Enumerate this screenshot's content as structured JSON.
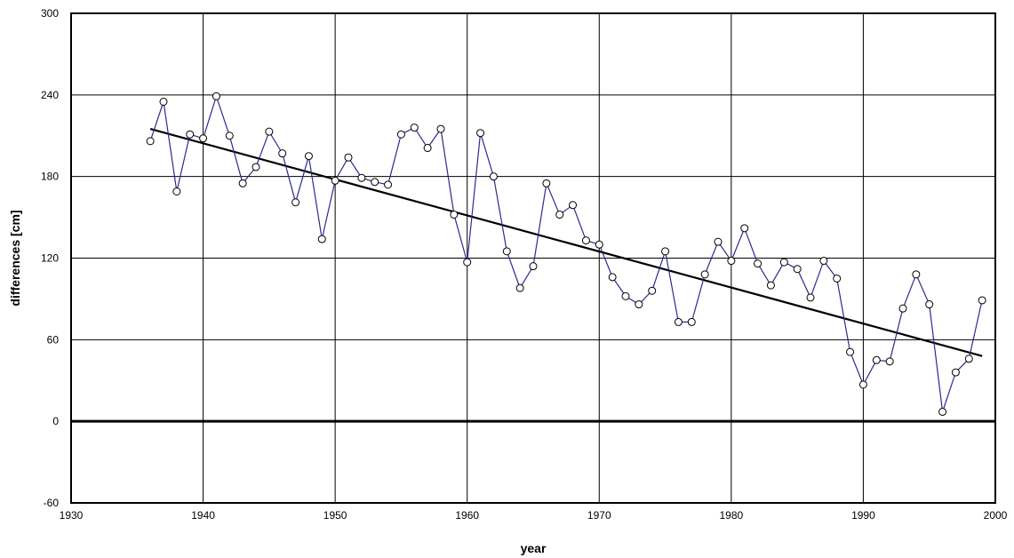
{
  "chart_data": {
    "type": "line",
    "title": "",
    "xlabel": "year",
    "ylabel": "differences [cm]",
    "xlim": [
      1930,
      2000
    ],
    "ylim": [
      -60,
      300
    ],
    "xticks": [
      1930,
      1940,
      1950,
      1960,
      1970,
      1980,
      1990,
      2000
    ],
    "yticks": [
      -60,
      0,
      60,
      120,
      180,
      240,
      300
    ],
    "grid": true,
    "legend": "none",
    "zero_line": true,
    "series": [
      {
        "color": "#2b2b8f",
        "marker": "open-circle",
        "x": [
          1936,
          1937,
          1938,
          1939,
          1940,
          1941,
          1942,
          1943,
          1944,
          1945,
          1946,
          1947,
          1948,
          1949,
          1950,
          1951,
          1952,
          1953,
          1954,
          1955,
          1956,
          1957,
          1958,
          1959,
          1960,
          1961,
          1962,
          1963,
          1964,
          1965,
          1966,
          1967,
          1968,
          1969,
          1970,
          1971,
          1972,
          1973,
          1974,
          1975,
          1976,
          1977,
          1978,
          1979,
          1980,
          1981,
          1982,
          1983,
          1984,
          1985,
          1986,
          1987,
          1988,
          1989,
          1990,
          1991,
          1992,
          1993,
          1994,
          1995,
          1996,
          1997,
          1998,
          1999
        ],
        "y": [
          206,
          235,
          169,
          211,
          208,
          239,
          210,
          175,
          187,
          213,
          197,
          161,
          195,
          134,
          177,
          194,
          179,
          176,
          174,
          211,
          216,
          201,
          215,
          152,
          117,
          212,
          180,
          125,
          98,
          114,
          175,
          152,
          159,
          133,
          130,
          106,
          92,
          86,
          96,
          125,
          73,
          73,
          108,
          132,
          118,
          142,
          116,
          100,
          117,
          112,
          91,
          118,
          105,
          51,
          27,
          45,
          44,
          83,
          108,
          86,
          7,
          36,
          46,
          89
        ]
      },
      {
        "type": "trend",
        "color": "#000000",
        "x": [
          1936,
          1999
        ],
        "y": [
          215,
          48
        ]
      }
    ]
  }
}
